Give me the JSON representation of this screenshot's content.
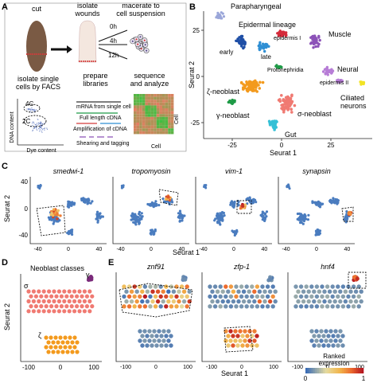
{
  "panels": {
    "a": {
      "letter": "A",
      "cut": "cut",
      "isolate_wounds": "isolate\nwounds",
      "macerate": "macerate to\ncell suspension",
      "times": [
        "0h",
        "4h",
        "12h"
      ],
      "facs": "isolate single\ncells by FACS",
      "gates": [
        "4C",
        "2C"
      ],
      "dna_axis": "DNA content",
      "dye_axis": "Dye content",
      "libraries": "prepare\nlibraries",
      "lib_steps": [
        "mRNA from single cell",
        "Full length cDNA",
        "Amplification of cDNA",
        "Shearing and tagging"
      ],
      "sequence": "sequence\nand analyze",
      "heat_cell_y": "Cell",
      "heat_cell_x": "Cell"
    },
    "b": {
      "letter": "B",
      "ylabel": "Seurat 2",
      "xlabel": "Seurat 1",
      "yticks": [
        "25",
        "0",
        "-25"
      ],
      "xticks": [
        "-25",
        "0",
        "25"
      ],
      "labels": [
        "Parapharyngeal",
        "Epidermal lineage",
        "epidermis I",
        "early",
        "late",
        "Muscle",
        "Protonephridia",
        "Neural",
        "ζ-neoblast",
        "epidermis II",
        "Ciliated\nneurons",
        "γ-neoblast",
        "σ-neoblast",
        "Gut"
      ]
    },
    "c": {
      "letter": "C",
      "ylabel": "Seurat 2",
      "xlabel": "Seurat 1",
      "genes": [
        "smedwi-1",
        "tropomyosin",
        "vim-1",
        "synapsin"
      ],
      "yticks": [
        "40",
        "0",
        "-40"
      ],
      "xticks": [
        "-40",
        "0",
        "40"
      ]
    },
    "d": {
      "letter": "D",
      "title": "Neoblast classes",
      "ylabel": "Seurat 2",
      "xticks": [
        "-100",
        "0",
        "100"
      ],
      "class_labels": [
        "σ",
        "γ",
        "ζ"
      ]
    },
    "e": {
      "letter": "E",
      "genes": [
        "znf91",
        "zfp-1",
        "hnf4"
      ],
      "xlabel": "Seurat 1",
      "xticks": [
        "-100",
        "0",
        "100"
      ],
      "legend_title": "Ranked\nexpression",
      "legend_ticks": [
        "0",
        "1"
      ]
    }
  },
  "colors": {
    "parapharyngeal": "#9aa6d9",
    "epidermal_early": "#1f4fa6",
    "epidermal_late": "#2f8fd4",
    "epidermis_I": "#d42a3a",
    "muscle": "#8c52b8",
    "protonephridia": "#1f9b47",
    "neural": "#b77dd6",
    "zeta": "#f39a1d",
    "gamma": "#7a2a7a",
    "sigma": "#f07a72",
    "gut": "#35c0d6",
    "ciliated": "#f2e325",
    "base_expr": "#4a7cbf"
  }
}
